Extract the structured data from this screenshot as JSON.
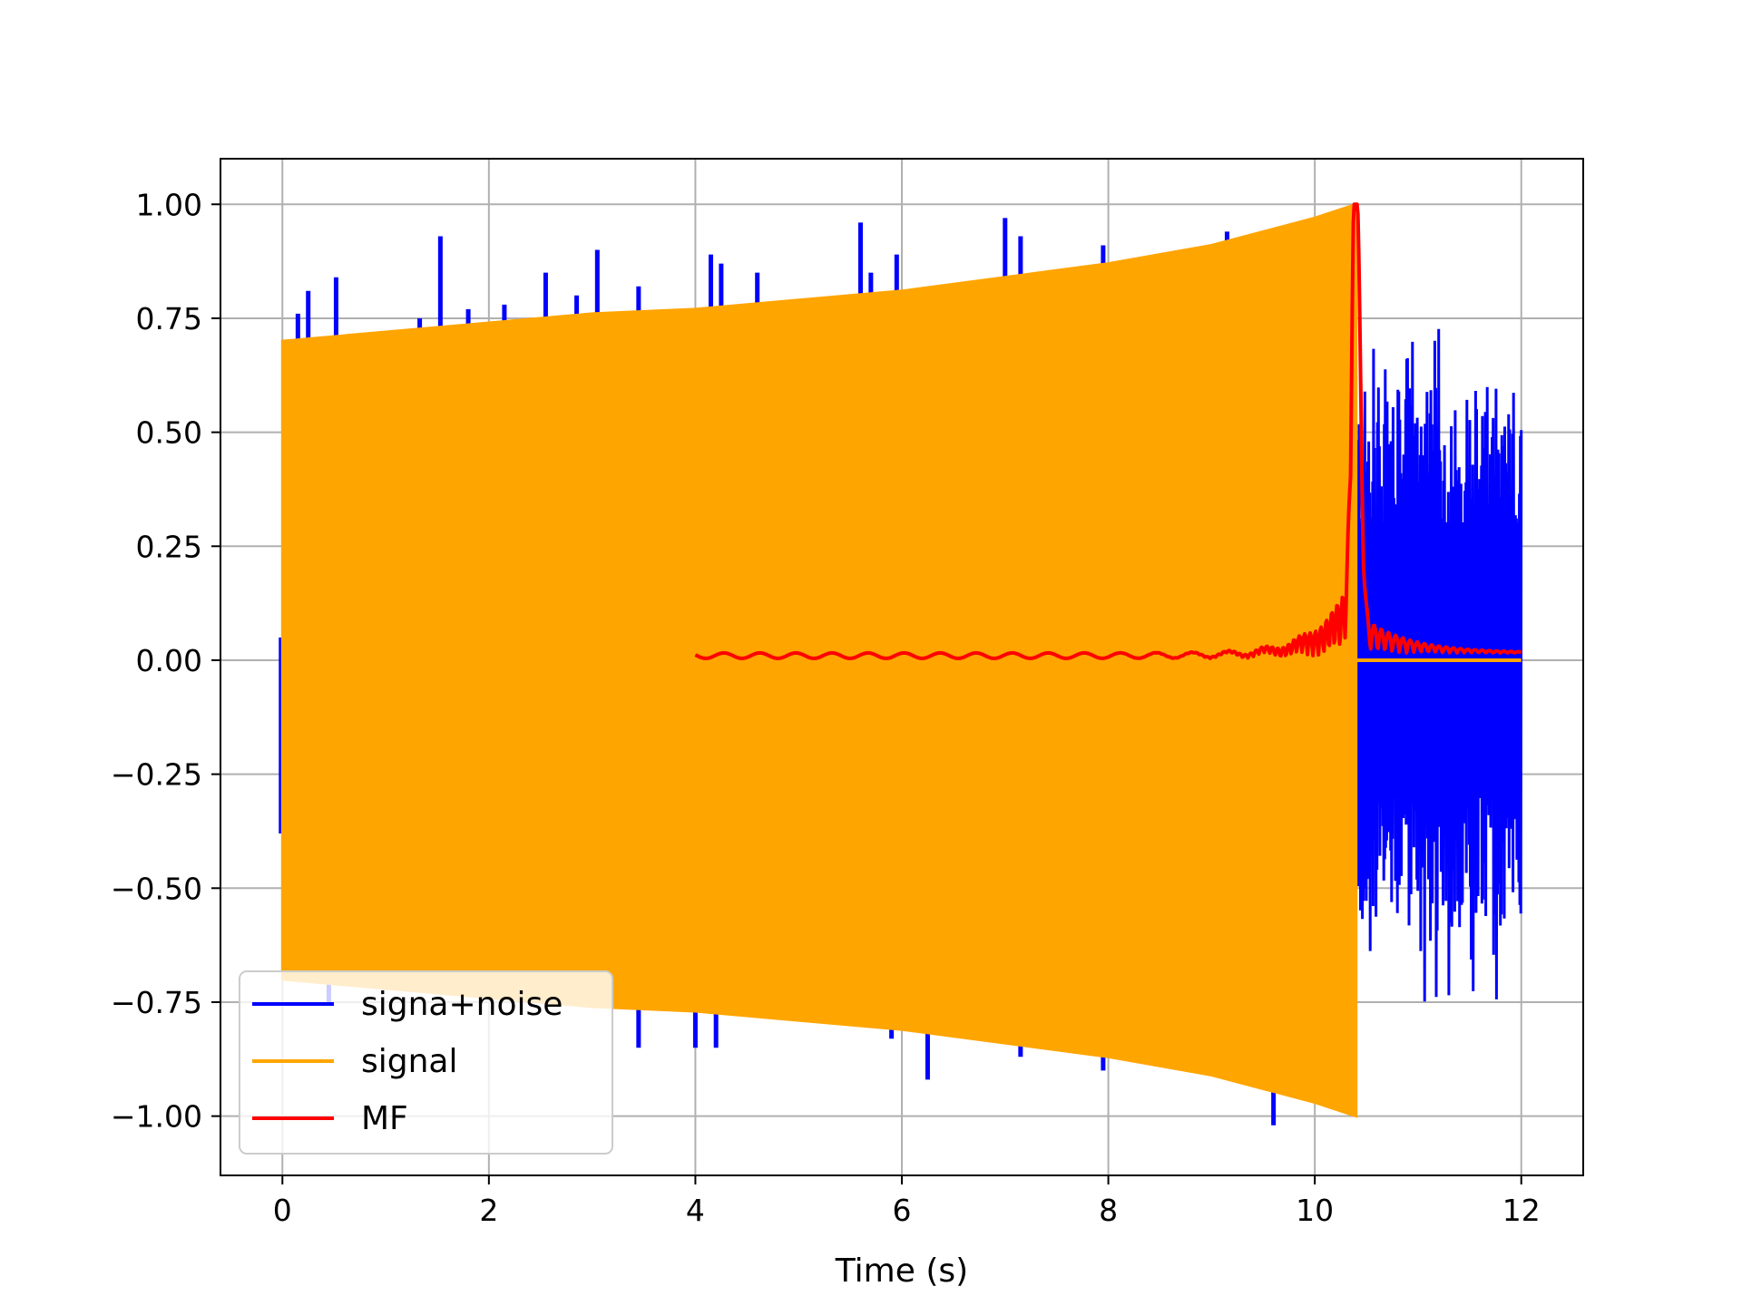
{
  "chart_data": {
    "type": "line",
    "title": "",
    "xlabel": "Time (s)",
    "ylabel": "",
    "xlim": [
      -0.6,
      12.6
    ],
    "ylim": [
      -1.13,
      1.1
    ],
    "grid": true,
    "legend_placement": "lower-left",
    "x_ticks": [
      0,
      2,
      4,
      6,
      8,
      10,
      12
    ],
    "x_tick_labels": [
      "0",
      "2",
      "4",
      "6",
      "8",
      "10",
      "12"
    ],
    "y_ticks": [
      1.0,
      0.75,
      0.5,
      0.25,
      0.0,
      -0.25,
      -0.5,
      -0.75,
      -1.0
    ],
    "y_tick_labels": [
      "1.00",
      "0.75",
      "0.50",
      "0.25",
      "0.00",
      "−0.25",
      "−0.50",
      "−0.75",
      "−1.00"
    ],
    "series": [
      {
        "name": "signa+noise",
        "color": "#0000ff",
        "kind": "noisy-signal",
        "spikes_up": [
          [
            0.15,
            0.76
          ],
          [
            0.25,
            0.81
          ],
          [
            0.52,
            0.84
          ],
          [
            1.33,
            0.75
          ],
          [
            1.53,
            0.93
          ],
          [
            1.8,
            0.77
          ],
          [
            2.15,
            0.78
          ],
          [
            2.55,
            0.85
          ],
          [
            2.85,
            0.8
          ],
          [
            3.05,
            0.9
          ],
          [
            3.45,
            0.82
          ],
          [
            4.15,
            0.89
          ],
          [
            4.25,
            0.87
          ],
          [
            4.6,
            0.85
          ],
          [
            5.6,
            0.96
          ],
          [
            5.7,
            0.85
          ],
          [
            5.95,
            0.89
          ],
          [
            7.0,
            0.97
          ],
          [
            7.15,
            0.93
          ],
          [
            7.95,
            0.91
          ],
          [
            9.15,
            0.94
          ]
        ],
        "spikes_down": [
          [
            0.45,
            -0.75
          ],
          [
            3.45,
            -0.85
          ],
          [
            4.0,
            -0.85
          ],
          [
            4.2,
            -0.85
          ],
          [
            5.9,
            -0.83
          ],
          [
            6.25,
            -0.92
          ],
          [
            7.15,
            -0.87
          ],
          [
            7.95,
            -0.9
          ],
          [
            9.6,
            -1.02
          ]
        ],
        "tail_x_range": [
          10.4,
          12.0
        ],
        "tail_envelope": [
          0.55,
          0.68
        ]
      },
      {
        "name": "signal",
        "color": "#ffa500",
        "kind": "chirp-envelope",
        "envelope": {
          "x": [
            0,
            1,
            2,
            3,
            4,
            5,
            6,
            7,
            8,
            9,
            10,
            10.4
          ],
          "upper": [
            0.7,
            0.72,
            0.74,
            0.76,
            0.77,
            0.79,
            0.81,
            0.84,
            0.87,
            0.91,
            0.97,
            1.0
          ],
          "lower": [
            -0.7,
            -0.72,
            -0.74,
            -0.76,
            -0.77,
            -0.79,
            -0.81,
            -0.84,
            -0.87,
            -0.91,
            -0.97,
            -1.0
          ]
        },
        "after": {
          "x": [
            10.4,
            12.0
          ],
          "y": [
            0.0,
            0.0
          ]
        }
      },
      {
        "name": "MF",
        "color": "#ff0000",
        "kind": "matched-filter",
        "x_range": [
          4.0,
          12.0
        ],
        "peak": [
          10.4,
          1.0
        ],
        "baseline": 0.01
      }
    ]
  }
}
